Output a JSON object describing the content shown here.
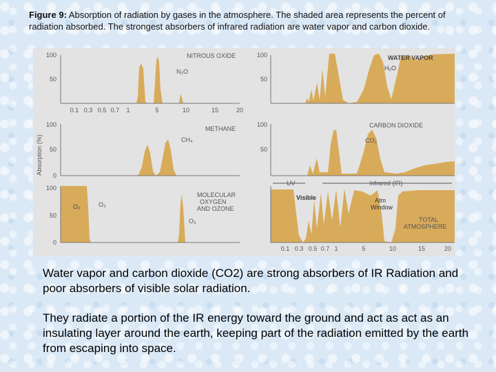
{
  "caption": {
    "label": "Figure 9:",
    "text": " Absorption of radiation by gases in the atmosphere. The shaded area represents the percent of radiation absorbed. The strongest absorbers of infrared radiation are water vapor and carbon dioxide."
  },
  "figure": {
    "y_axis_label": "Absorption (%)",
    "tick_100": "100",
    "tick_50": "50",
    "tick_0": "0",
    "x_ticks": [
      "0.1",
      "0.3",
      "0.5",
      "0.7",
      "1",
      "5",
      "10",
      "15",
      "20"
    ],
    "panels": {
      "nitrous_oxide": {
        "title": "NITROUS OXIDE",
        "formula": "N₂O"
      },
      "water_vapor": {
        "title": "WATER VAPOR",
        "formula": "H₂O"
      },
      "methane": {
        "title": "METHANE",
        "formula": "CH₄"
      },
      "carbon_dioxide": {
        "title": "CARBON DIOXIDE",
        "formula": "CO₂"
      },
      "oxygen_ozone": {
        "title_lines": [
          "MOLECULAR",
          "OXYGEN",
          "AND OZONE"
        ],
        "o2": "O₂",
        "o3": "O₃",
        "o3b": "O₃"
      },
      "total": {
        "title_lines": [
          "TOTAL",
          "ATMOSPHERE"
        ],
        "uv": "UV",
        "infrared": "Infrared (IR)",
        "visible": "Visible",
        "window_lines": [
          "Atm",
          "Window"
        ]
      }
    },
    "colors": {
      "fill": "#d8ab5a",
      "panel": "#e3e3e3",
      "axis": "#777777"
    }
  },
  "paragraphs": [
    "Water vapor and carbon dioxide (CO2) are strong absorbers of IR Radiation and poor absorbers of visible solar radiation.",
    "They radiate a portion of the IR energy toward the ground and act as act as an insulating layer around the earth, keeping part of the radiation emitted by the earth from escaping into space."
  ]
}
